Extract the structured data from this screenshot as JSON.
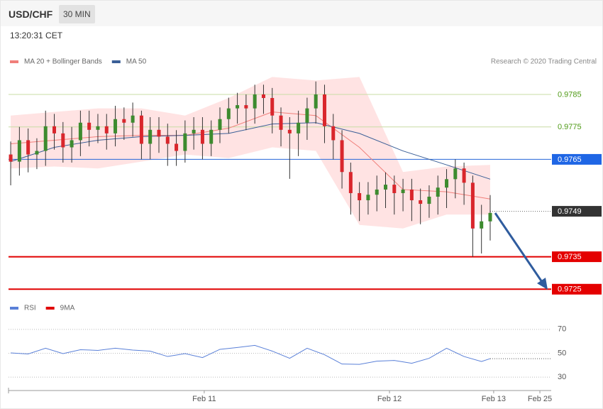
{
  "header": {
    "symbol": "USD/CHF",
    "timeframe": "30 MIN",
    "time": "13:20:31 CET",
    "credit": "Research © 2020 Trading Central"
  },
  "chart_data": [
    {
      "type": "candlestick",
      "xlim": [
        -0.25,
        62
      ],
      "ylim": [
        0.9722,
        0.9792
      ],
      "up_color": "#3d8b2f",
      "down_color": "#d9262c",
      "open": [
        0.97665,
        0.97643,
        0.97709,
        0.97665,
        0.97676,
        0.97752,
        0.9773,
        0.97687,
        0.97709,
        0.97763,
        0.97741,
        0.97752,
        0.9773,
        0.97774,
        0.97763,
        0.97785,
        0.97698,
        0.97741,
        0.9772,
        0.97698,
        0.97676,
        0.9773,
        0.97741,
        0.97698,
        0.97741,
        0.97774,
        0.97807,
        0.97817,
        0.97807,
        0.9785,
        0.97839,
        0.97785,
        0.97741,
        0.9773,
        0.97763,
        0.97807,
        0.9785,
        0.97752,
        0.97709,
        0.97611,
        0.97546,
        0.97524,
        0.97541,
        0.97557,
        0.97572,
        0.97546,
        0.97557,
        0.97524,
        0.97513,
        0.97535,
        0.97563,
        0.97589,
        0.97622,
        0.97578,
        0.97437,
        0.97459
      ],
      "high": [
        0.97705,
        0.9775,
        0.97745,
        0.97715,
        0.978,
        0.9779,
        0.97765,
        0.9775,
        0.978,
        0.978,
        0.9779,
        0.9779,
        0.97815,
        0.9781,
        0.97825,
        0.978,
        0.9778,
        0.9778,
        0.9776,
        0.9774,
        0.9777,
        0.9778,
        0.9778,
        0.9777,
        0.9781,
        0.9784,
        0.97855,
        0.9785,
        0.9788,
        0.9788,
        0.9787,
        0.9781,
        0.9778,
        0.978,
        0.9784,
        0.9789,
        0.9788,
        0.9779,
        0.9774,
        0.9764,
        0.9758,
        0.9758,
        0.976,
        0.9761,
        0.976,
        0.9759,
        0.9759,
        0.9756,
        0.9757,
        0.976,
        0.9762,
        0.9765,
        0.9764,
        0.976,
        0.9751,
        0.9754
      ],
      "low": [
        0.9757,
        0.976,
        0.9761,
        0.9762,
        0.9763,
        0.9768,
        0.9764,
        0.9764,
        0.9766,
        0.9769,
        0.977,
        0.9768,
        0.9769,
        0.9771,
        0.9772,
        0.9765,
        0.9765,
        0.9767,
        0.9763,
        0.9763,
        0.9764,
        0.9768,
        0.9765,
        0.9766,
        0.977,
        0.9773,
        0.9776,
        0.9774,
        0.9776,
        0.9779,
        0.9773,
        0.9769,
        0.9759,
        0.9766,
        0.9771,
        0.9776,
        0.977,
        0.9765,
        0.9756,
        0.9748,
        0.9746,
        0.9748,
        0.9749,
        0.975,
        0.9748,
        0.9749,
        0.9746,
        0.9745,
        0.9747,
        0.9748,
        0.975,
        0.9753,
        0.9751,
        0.9735,
        0.9736,
        0.974
      ],
      "close": [
        0.97643,
        0.97709,
        0.97665,
        0.97676,
        0.97752,
        0.9773,
        0.97687,
        0.97709,
        0.97763,
        0.97741,
        0.97752,
        0.9773,
        0.97774,
        0.97763,
        0.97785,
        0.97698,
        0.97741,
        0.9772,
        0.97698,
        0.97676,
        0.9773,
        0.97741,
        0.97698,
        0.97741,
        0.97774,
        0.97807,
        0.97817,
        0.97807,
        0.9785,
        0.97839,
        0.97785,
        0.97741,
        0.9773,
        0.97763,
        0.97807,
        0.9785,
        0.97752,
        0.97709,
        0.97611,
        0.97546,
        0.97524,
        0.97541,
        0.97557,
        0.97572,
        0.97546,
        0.97557,
        0.97524,
        0.97513,
        0.97535,
        0.97563,
        0.97589,
        0.97622,
        0.97578,
        0.97437,
        0.97459,
        0.97485
      ],
      "series": [
        {
          "name": "MA 20 + Bollinger Bands",
          "color": "#f07f7a",
          "band_color": "#ffdede",
          "x": [
            0,
            5,
            10,
            15,
            20,
            25,
            30,
            35,
            40,
            45,
            50,
            55
          ],
          "values": [
            0.97698,
            0.97709,
            0.9772,
            0.97724,
            0.97724,
            0.97746,
            0.97796,
            0.97785,
            0.97687,
            0.97557,
            0.9755,
            0.97528
          ],
          "upper": [
            0.97785,
            0.97796,
            0.97807,
            0.97807,
            0.97785,
            0.97839,
            0.97904,
            0.97893,
            0.97904,
            0.97611,
            0.97628,
            0.97633
          ],
          "lower": [
            0.97622,
            0.97628,
            0.97622,
            0.97643,
            0.97665,
            0.97654,
            0.97687,
            0.97676,
            0.97448,
            0.97437,
            0.9748,
            0.9748
          ]
        },
        {
          "name": "MA 50",
          "color": "#3a5f97",
          "x": [
            0,
            5,
            10,
            15,
            20,
            25,
            30,
            35,
            40,
            45,
            50,
            55
          ],
          "values": [
            0.97643,
            0.97687,
            0.97709,
            0.9772,
            0.97724,
            0.9773,
            0.97759,
            0.97763,
            0.9773,
            0.97676,
            0.97633,
            0.97589
          ]
        }
      ],
      "levels": [
        {
          "value": 0.9785,
          "color": "#c9dca4",
          "label_color": "#4f9a16",
          "label_style": "text",
          "line": "solid"
        },
        {
          "value": 0.9775,
          "color": "#c9dca4",
          "label_color": "#4f9a16",
          "label_style": "text",
          "line": "solid"
        },
        {
          "value": 0.9765,
          "color": "#2466d8",
          "label_color": "#1f66e5",
          "label_style": "box",
          "line": "solid"
        },
        {
          "value": 0.9749,
          "color": "#666666",
          "label_color": "#333333",
          "label_style": "box",
          "line": "dotted"
        },
        {
          "value": 0.9735,
          "color": "#e00000",
          "label_color": "#e40000",
          "label_style": "box",
          "line": "bold"
        },
        {
          "value": 0.9725,
          "color": "#e00000",
          "label_color": "#e40000",
          "label_style": "box",
          "line": "bold"
        }
      ]
    },
    {
      "type": "line",
      "xlim": [
        -0.25,
        62
      ],
      "ylim": [
        20,
        80
      ],
      "yticks": [
        30,
        50,
        70
      ],
      "xticks": [
        {
          "value": 22.2,
          "label": "Feb 11"
        },
        {
          "value": 43.45,
          "label": "Feb 12"
        },
        {
          "value": 55.4,
          "label": "Feb 13"
        },
        {
          "value": 60.7,
          "label": "Feb 25"
        }
      ],
      "series": [
        {
          "name": "RSI",
          "color": "#5a80d8",
          "x": [
            0,
            2,
            4,
            6,
            8,
            10,
            12,
            14,
            16,
            18,
            20,
            22,
            24,
            26,
            28,
            30,
            32,
            34,
            36,
            38,
            40,
            42,
            44,
            46,
            48,
            50,
            52,
            54,
            55
          ],
          "values": [
            50.3,
            49.4,
            54.2,
            49.7,
            53.0,
            52.4,
            54.2,
            52.7,
            51.8,
            47.3,
            49.7,
            46.4,
            53.3,
            54.8,
            56.6,
            51.8,
            45.8,
            54.2,
            48.8,
            41.0,
            40.7,
            43.4,
            44.0,
            41.6,
            45.8,
            54.2,
            47.3,
            43.1,
            45.5
          ]
        },
        {
          "name": "9MA",
          "color": "#e00000"
        }
      ]
    }
  ]
}
